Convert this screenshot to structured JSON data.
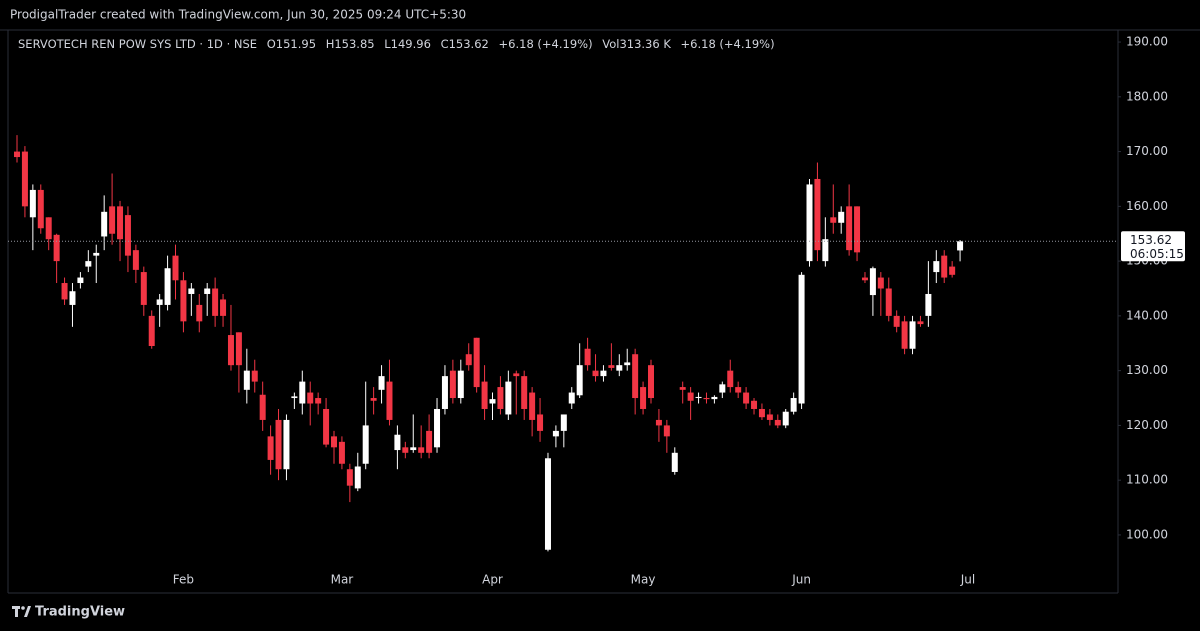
{
  "header": {
    "caption": "ProdigalTrader created with TradingView.com, Jun 30, 2025 09:24 UTC+5:30"
  },
  "footer": {
    "brand": "TradingView"
  },
  "chart_data": {
    "type": "candlestick",
    "title": "SERVOTECH REN POW SYS LTD · 1D · NSE",
    "ohlc_labels": [
      "O",
      "H",
      "L",
      "C"
    ],
    "change": "+6.18 (+4.19%)",
    "volume_label": "Vol",
    "volume": "313.36 K",
    "volume_change": "+6.18 (+4.19%)",
    "countdown": "06:05:15",
    "up_color": "#ffffff",
    "down_color": "#f23645",
    "categories": [
      null,
      null,
      null,
      null,
      null,
      null,
      null,
      null,
      null,
      null,
      null,
      null,
      null,
      null,
      null,
      null,
      null,
      null,
      null,
      null,
      null,
      "Feb",
      null,
      null,
      null,
      null,
      null,
      null,
      null,
      null,
      null,
      null,
      null,
      null,
      null,
      null,
      null,
      null,
      null,
      null,
      null,
      "Mar",
      null,
      null,
      null,
      null,
      null,
      null,
      null,
      null,
      null,
      null,
      null,
      null,
      null,
      null,
      null,
      null,
      null,
      null,
      "Apr",
      null,
      null,
      null,
      null,
      null,
      null,
      null,
      null,
      null,
      null,
      null,
      null,
      null,
      null,
      null,
      null,
      null,
      null,
      "May",
      null,
      null,
      null,
      null,
      null,
      null,
      null,
      null,
      null,
      null,
      null,
      null,
      null,
      null,
      null,
      null,
      null,
      null,
      null,
      "Jun",
      null,
      null,
      null,
      null,
      null,
      null,
      null,
      null,
      null,
      null,
      null,
      null,
      null,
      null,
      null,
      null,
      null,
      null,
      null,
      null,
      "Jul"
    ],
    "open": [
      170,
      170,
      158,
      163,
      158,
      154.8,
      146,
      142,
      146,
      149,
      151,
      154.5,
      160,
      160,
      158.4,
      152,
      148,
      140,
      142,
      142,
      151,
      146.5,
      144,
      142,
      144,
      145,
      143,
      136.5,
      137,
      126.5,
      130,
      125.6,
      118,
      121,
      112,
      125,
      124,
      126,
      125,
      123,
      118,
      117,
      112,
      108.5,
      113,
      125,
      126.5,
      128,
      115.5,
      116,
      115.5,
      116,
      119,
      116,
      123,
      130,
      125,
      133,
      136,
      128,
      124,
      127,
      122,
      129.5,
      129,
      126,
      122,
      97.3,
      118,
      119,
      124,
      125.5,
      134,
      130,
      129,
      131,
      130,
      131,
      133,
      127,
      131,
      121,
      120,
      111.5,
      127,
      126,
      125,
      125,
      124.8,
      126,
      130,
      127,
      126,
      124.5,
      123,
      122,
      121,
      120,
      122.5,
      124,
      150,
      165,
      150,
      158,
      157,
      160,
      160,
      147,
      143.8,
      147,
      145,
      140,
      139,
      134,
      139,
      140,
      148,
      151,
      149,
      151.95,
      null
    ],
    "high": [
      173,
      171,
      164,
      164,
      158,
      155,
      147,
      146,
      148,
      152,
      153,
      162,
      166,
      161,
      160,
      153,
      149,
      141,
      144,
      151,
      153,
      148,
      146,
      144,
      146,
      147,
      144,
      142,
      137,
      134,
      132,
      128,
      120,
      123,
      122,
      126,
      130,
      128,
      126,
      125,
      119,
      118,
      113,
      115,
      128,
      127,
      131,
      132,
      120,
      117,
      122,
      120,
      122,
      125,
      131,
      132,
      132,
      135,
      136,
      131,
      126,
      129,
      130,
      130,
      130,
      127,
      125,
      115,
      120,
      122,
      127,
      135,
      136,
      133,
      131,
      135,
      133,
      134,
      134,
      128,
      132,
      123,
      121,
      116,
      128,
      127,
      126,
      126,
      125.5,
      128,
      132,
      128,
      127,
      125,
      124,
      123,
      122,
      123,
      126,
      148,
      165,
      168,
      158,
      164,
      160,
      164,
      160,
      148,
      149,
      148,
      147,
      141,
      140,
      140,
      140,
      150,
      152,
      152,
      150,
      153.85,
      null
    ],
    "low": [
      168,
      158,
      152,
      155,
      152,
      146,
      142,
      138,
      145,
      148,
      146,
      152,
      153,
      150,
      148,
      146,
      140,
      134,
      138,
      141,
      143,
      137,
      140,
      137,
      140,
      138,
      138,
      130,
      126,
      124,
      126,
      119,
      111,
      110,
      110,
      123,
      122,
      120,
      122,
      116,
      113,
      112,
      106,
      108,
      112,
      122,
      124,
      120,
      112,
      114,
      115,
      114,
      114,
      115,
      122,
      124,
      124,
      130,
      126,
      121,
      121,
      122,
      121,
      122,
      121,
      118,
      117,
      97,
      116,
      116,
      123,
      125,
      130,
      128,
      128,
      130,
      129,
      130,
      122,
      122,
      124,
      117,
      115,
      111,
      124,
      121,
      124,
      124,
      124,
      125,
      126,
      125,
      123,
      122,
      121,
      120,
      119.5,
      119.5,
      122,
      123,
      149,
      150,
      149,
      155,
      155,
      151,
      150,
      146,
      140,
      140,
      139,
      137,
      133,
      133,
      138,
      138,
      146,
      146,
      147,
      149.96,
      null
    ],
    "close": [
      169,
      160,
      163,
      156,
      154,
      150,
      143,
      144.5,
      147,
      150,
      151.5,
      159,
      155,
      154,
      151,
      148.4,
      142,
      134.5,
      143,
      148.7,
      146.5,
      139,
      145,
      139,
      145,
      140,
      140,
      131,
      131,
      130,
      128,
      121,
      113.7,
      112,
      121,
      125.3,
      128,
      124,
      124,
      116.5,
      116,
      113,
      109,
      112.5,
      120,
      124.5,
      129,
      121,
      118.3,
      115,
      116,
      115,
      115,
      123,
      129,
      125,
      130,
      131,
      127,
      123,
      124.8,
      123,
      128,
      129,
      123,
      121,
      119,
      114,
      119,
      122,
      126,
      131,
      131,
      129,
      130,
      130.5,
      131,
      131.5,
      125,
      123,
      125,
      120,
      118,
      115,
      126.5,
      124.5,
      125.2,
      124.8,
      125.2,
      127.5,
      127,
      126,
      124,
      123,
      121.5,
      121,
      120,
      122.5,
      125,
      147.5,
      164,
      152,
      154,
      157,
      159,
      152,
      151.6,
      146.5,
      148.7,
      145,
      140,
      138,
      134,
      139,
      138.5,
      144,
      150,
      147,
      147.5,
      153.62,
      null
    ],
    "ylim": [
      89.4,
      192.2
    ],
    "yticks": [
      {
        "value": 100,
        "label": "100.00"
      },
      {
        "value": 110,
        "label": "110.00"
      },
      {
        "value": 120,
        "label": "120.00"
      },
      {
        "value": 130,
        "label": "130.00"
      },
      {
        "value": 140,
        "label": "140.00"
      },
      {
        "value": 150,
        "label": "150.00"
      },
      {
        "value": 160,
        "label": "160.00"
      },
      {
        "value": 170,
        "label": "170.00"
      },
      {
        "value": 180,
        "label": "180.00"
      },
      {
        "value": 190,
        "label": "190.00"
      }
    ],
    "grid": false
  }
}
